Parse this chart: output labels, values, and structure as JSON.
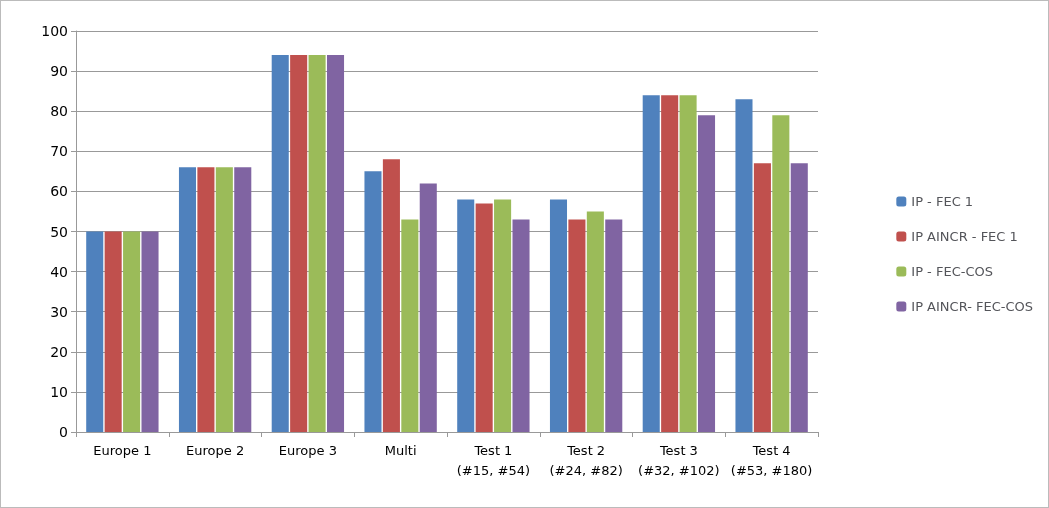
{
  "chart_data": {
    "type": "bar",
    "categories": [
      "Europe 1",
      "Europe 2",
      "Europe 3",
      "Multi",
      "Test 1\n(#15, #54)",
      "Test 2\n(#24, #82)",
      "Test 3\n(#32, #102)",
      "Test 4\n(#53, #180)"
    ],
    "series": [
      {
        "name": "IP - FEC 1",
        "color": "#4f81bd",
        "values": [
          50,
          66,
          94,
          65,
          58,
          58,
          84,
          83
        ]
      },
      {
        "name": "IP AINCR - FEC 1",
        "color": "#c0504d",
        "values": [
          50,
          66,
          94,
          68,
          57,
          53,
          84,
          67
        ]
      },
      {
        "name": "IP - FEC-COS",
        "color": "#9bbb59",
        "values": [
          50,
          66,
          94,
          53,
          58,
          55,
          84,
          79
        ]
      },
      {
        "name": "IP AINCR- FEC-COS",
        "color": "#8064a2",
        "values": [
          50,
          66,
          94,
          62,
          53,
          53,
          79,
          67
        ]
      }
    ],
    "ylim": [
      0,
      100
    ],
    "yticks": [
      0,
      10,
      20,
      30,
      40,
      50,
      60,
      70,
      80,
      90,
      100
    ],
    "grid": "y",
    "legend": "right"
  }
}
